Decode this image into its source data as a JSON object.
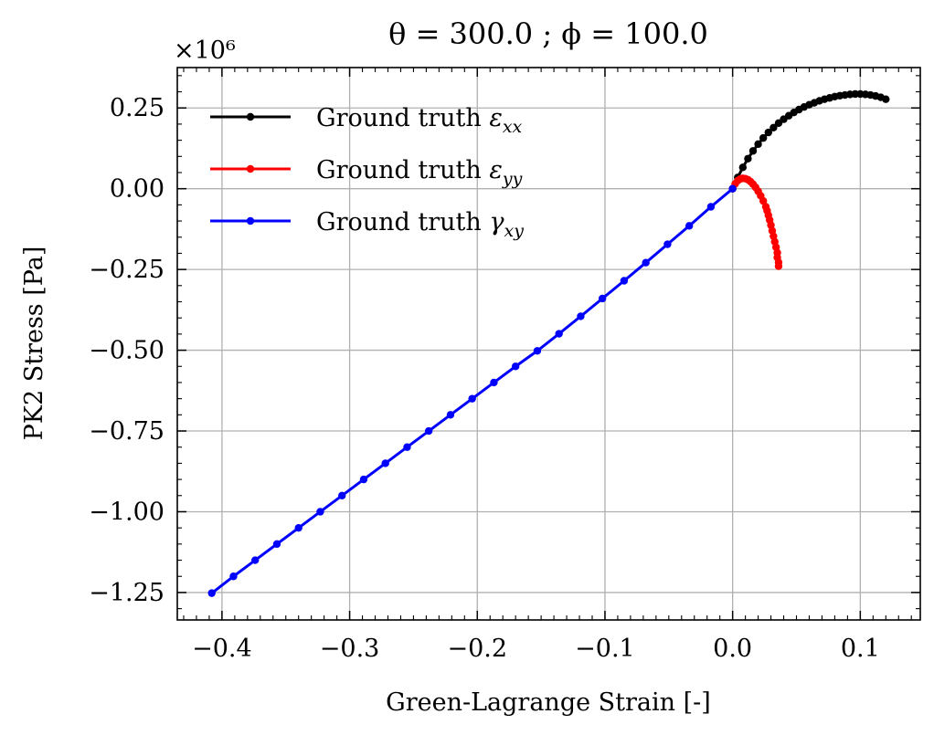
{
  "chart_data": {
    "type": "line",
    "title": "θ = 300.0 ; ϕ = 100.0",
    "xlabel": "Green-Lagrange Strain [-]",
    "ylabel": "PK2 Stress [Pa]",
    "y_offset_label": "×10⁶",
    "y_multiplier": 1000000,
    "xlim": [
      -0.435,
      0.147
    ],
    "ylim": [
      -1.335,
      0.375
    ],
    "x_ticks": [
      -0.4,
      -0.3,
      -0.2,
      -0.1,
      0.0,
      0.1
    ],
    "x_tick_labels": [
      "−0.4",
      "−0.3",
      "−0.2",
      "−0.1",
      "0.0",
      "0.1"
    ],
    "y_ticks": [
      0.25,
      0.0,
      -0.25,
      -0.5,
      -0.75,
      -1.0,
      -1.25
    ],
    "y_tick_labels": [
      "0.25",
      "0.00",
      "−0.25",
      "−0.50",
      "−0.75",
      "−1.00",
      "−1.25"
    ],
    "grid": true,
    "legend_position": "top-left",
    "series": [
      {
        "name": "Ground truth εxx",
        "legend_base": "Ground truth ",
        "legend_symbol": "ε",
        "legend_sub": "xx",
        "color": "#000000",
        "x": [
          0.0,
          0.004,
          0.008,
          0.012,
          0.016,
          0.02,
          0.024,
          0.028,
          0.032,
          0.036,
          0.04,
          0.044,
          0.048,
          0.052,
          0.056,
          0.06,
          0.064,
          0.068,
          0.072,
          0.076,
          0.08,
          0.084,
          0.088,
          0.092,
          0.096,
          0.1,
          0.104,
          0.108,
          0.112,
          0.116,
          0.12
        ],
        "y": [
          0.0,
          0.035,
          0.066,
          0.093,
          0.117,
          0.138,
          0.157,
          0.174,
          0.189,
          0.203,
          0.215,
          0.226,
          0.236,
          0.245,
          0.253,
          0.26,
          0.266,
          0.272,
          0.277,
          0.281,
          0.285,
          0.288,
          0.29,
          0.292,
          0.293,
          0.293,
          0.292,
          0.29,
          0.287,
          0.283,
          0.277
        ]
      },
      {
        "name": "Ground truth εyy",
        "legend_base": "Ground truth ",
        "legend_symbol": "ε",
        "legend_sub": "yy",
        "color": "#ff0000",
        "x": [
          0.0,
          0.002,
          0.004,
          0.006,
          0.008,
          0.01,
          0.012,
          0.014,
          0.016,
          0.018,
          0.02,
          0.022,
          0.024,
          0.026,
          0.027,
          0.028,
          0.029,
          0.03,
          0.031,
          0.032,
          0.033,
          0.034,
          0.035,
          0.035,
          0.036,
          0.036
        ],
        "y": [
          0.0,
          0.015,
          0.025,
          0.03,
          0.032,
          0.031,
          0.028,
          0.022,
          0.014,
          0.004,
          -0.008,
          -0.022,
          -0.038,
          -0.056,
          -0.068,
          -0.082,
          -0.097,
          -0.113,
          -0.13,
          -0.147,
          -0.164,
          -0.181,
          -0.198,
          -0.213,
          -0.228,
          -0.24
        ]
      },
      {
        "name": "Ground truth γxy",
        "legend_base": "Ground truth ",
        "legend_symbol": "γ",
        "legend_sub": "xy",
        "color": "#0000ff",
        "x": [
          0.0,
          -0.017,
          -0.034,
          -0.051,
          -0.068,
          -0.085,
          -0.102,
          -0.119,
          -0.136,
          -0.153,
          -0.17,
          -0.187,
          -0.204,
          -0.221,
          -0.238,
          -0.255,
          -0.272,
          -0.289,
          -0.306,
          -0.323,
          -0.34,
          -0.357,
          -0.374,
          -0.391,
          -0.408
        ],
        "y": [
          0.0,
          -0.056,
          -0.115,
          -0.172,
          -0.229,
          -0.285,
          -0.34,
          -0.395,
          -0.449,
          -0.502,
          -0.55,
          -0.6,
          -0.65,
          -0.7,
          -0.75,
          -0.8,
          -0.85,
          -0.9,
          -0.95,
          -1.0,
          -1.05,
          -1.1,
          -1.15,
          -1.2,
          -1.252
        ]
      }
    ]
  }
}
